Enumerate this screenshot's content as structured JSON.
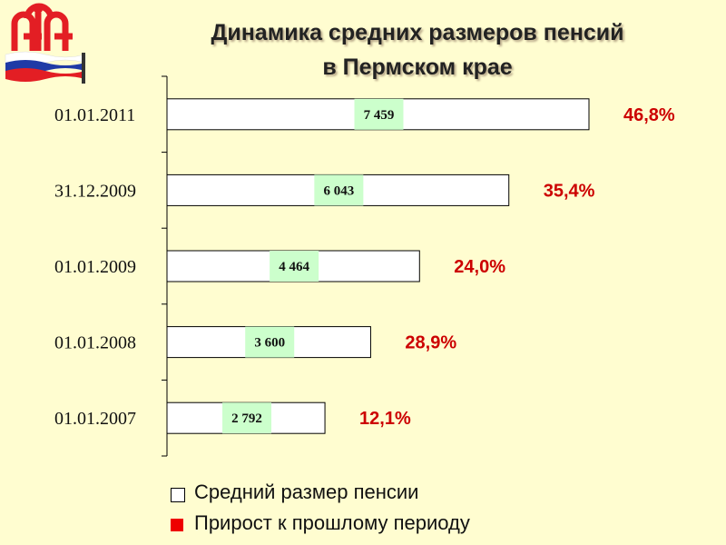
{
  "title": {
    "line1": "Динамика средних размеров пенсий",
    "line2": "в Пермском крае"
  },
  "logo": {
    "name": "pension-fund-logo",
    "text": "ПФ"
  },
  "colors": {
    "background": "#fffdd0",
    "bar_fill": "#ffffff",
    "label_box": "#ccffcc",
    "growth_text": "#cc0000",
    "logo_red": "#e31e24",
    "flag_blue": "#1f3aa6"
  },
  "legend": {
    "items": [
      {
        "label": "Средний размер пенсии",
        "color": "#ffffff"
      },
      {
        "label": "Прирост к прошлому периоду",
        "color": "#ee0000"
      }
    ]
  },
  "chart_data": {
    "type": "bar",
    "orientation": "horizontal",
    "categories": [
      "01.01.2011",
      "31.12.2009",
      "01.01.2009",
      "01.01.2008",
      "01.01.2007"
    ],
    "series": [
      {
        "name": "Средний размер пенсии",
        "values": [
          7459,
          6043,
          4464,
          3600,
          2792
        ],
        "labels": [
          "7 459",
          "6 043",
          "4 464",
          "3 600",
          "2 792"
        ]
      },
      {
        "name": "Прирост к прошлому периоду",
        "values": [
          46.8,
          35.4,
          24.0,
          28.9,
          12.1
        ],
        "labels": [
          "46,8%",
          "35,4%",
          "24,0%",
          "28,9%",
          "12,1%"
        ]
      }
    ],
    "grid": false
  }
}
